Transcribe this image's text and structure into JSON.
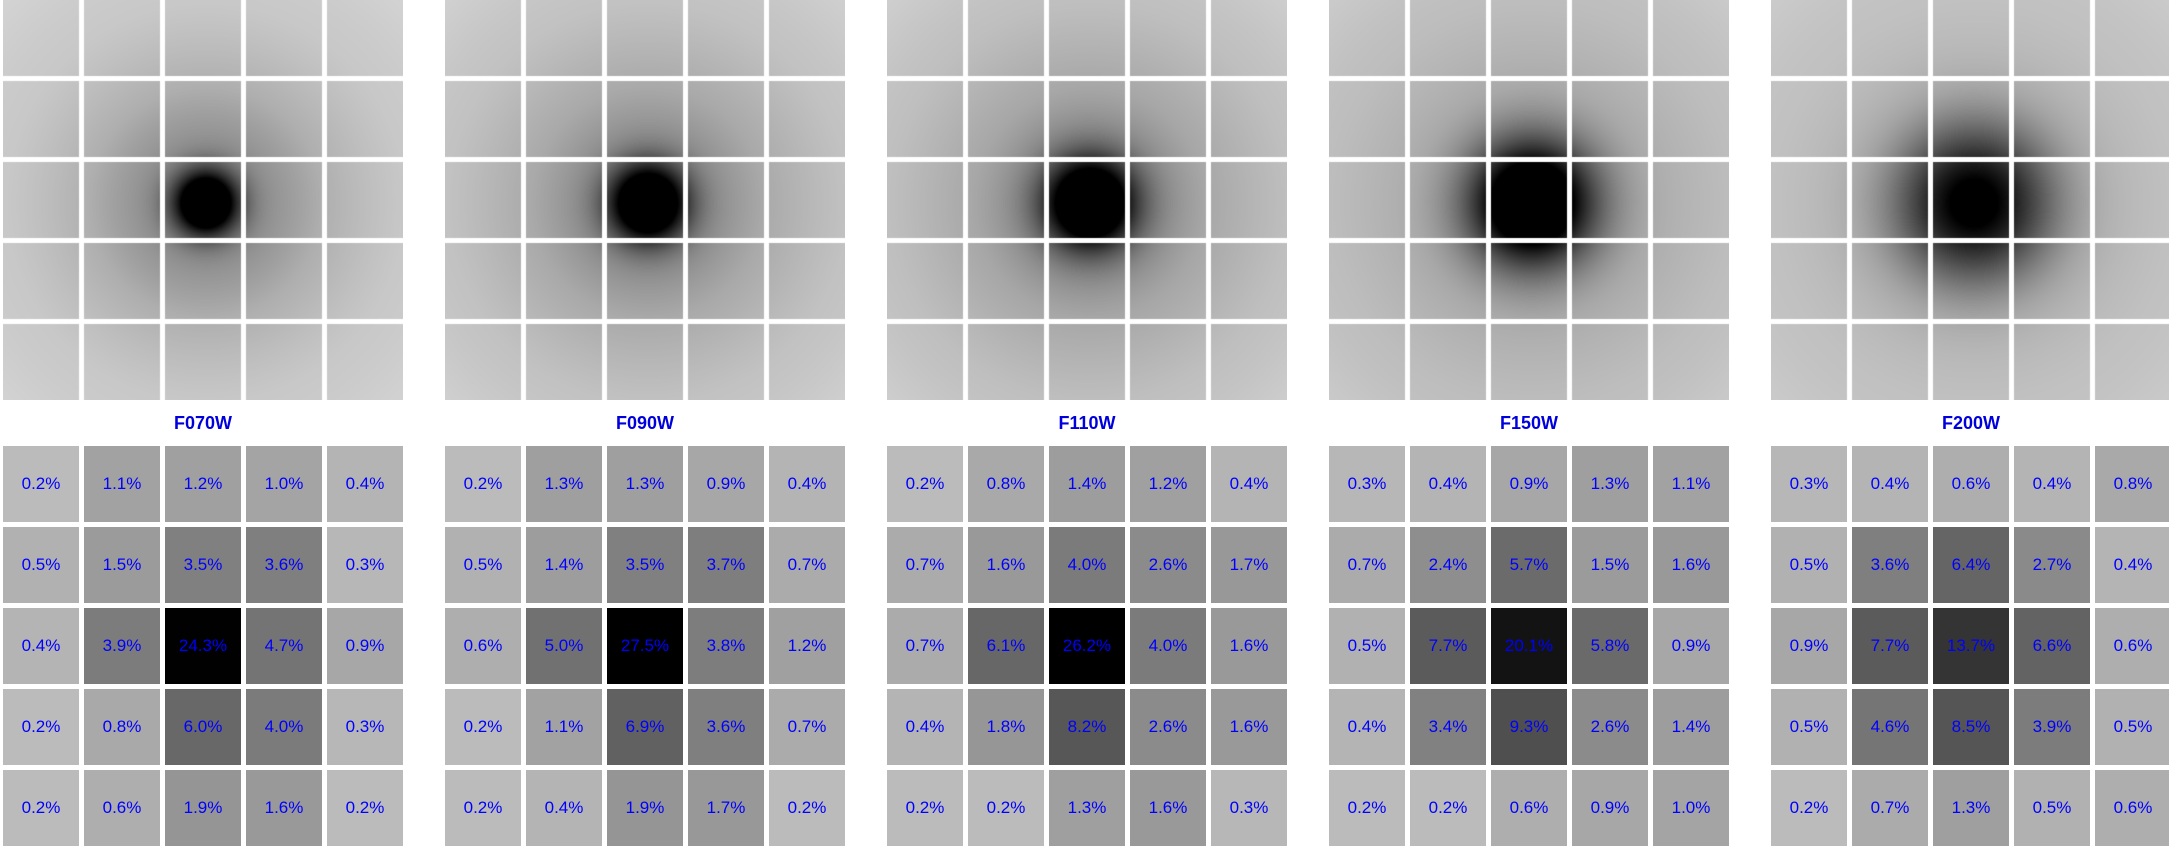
{
  "colors": {
    "label": "#0000ff",
    "title": "#0000dd",
    "gridline": "#ffffff",
    "background": "#ffffff"
  },
  "chart_data": [
    {
      "type": "heatmap",
      "title": "F070W",
      "psf_profile": {
        "core_width": 0.42,
        "halo_width": 1.4,
        "core_weight": 1.0,
        "halo_weight": 0.25
      },
      "values": [
        [
          "0.2%",
          "1.1%",
          "1.2%",
          "1.0%",
          "0.4%"
        ],
        [
          "0.5%",
          "1.5%",
          "3.5%",
          "3.6%",
          "0.3%"
        ],
        [
          "0.4%",
          "3.9%",
          "24.3%",
          "4.7%",
          "0.9%"
        ],
        [
          "0.2%",
          "0.8%",
          "6.0%",
          "4.0%",
          "0.3%"
        ],
        [
          "0.2%",
          "0.6%",
          "1.9%",
          "1.6%",
          "0.2%"
        ]
      ]
    },
    {
      "type": "heatmap",
      "title": "F090W",
      "psf_profile": {
        "core_width": 0.5,
        "halo_width": 1.6,
        "core_weight": 1.0,
        "halo_weight": 0.25
      },
      "values": [
        [
          "0.2%",
          "1.3%",
          "1.3%",
          "0.9%",
          "0.4%"
        ],
        [
          "0.5%",
          "1.4%",
          "3.5%",
          "3.7%",
          "0.7%"
        ],
        [
          "0.6%",
          "5.0%",
          "27.5%",
          "3.8%",
          "1.2%"
        ],
        [
          "0.2%",
          "1.1%",
          "6.9%",
          "3.6%",
          "0.7%"
        ],
        [
          "0.2%",
          "0.4%",
          "1.9%",
          "1.7%",
          "0.2%"
        ]
      ]
    },
    {
      "type": "heatmap",
      "title": "F110W",
      "psf_profile": {
        "core_width": 0.58,
        "halo_width": 1.7,
        "core_weight": 1.0,
        "halo_weight": 0.25
      },
      "values": [
        [
          "0.2%",
          "0.8%",
          "1.4%",
          "1.2%",
          "0.4%"
        ],
        [
          "0.7%",
          "1.6%",
          "4.0%",
          "2.6%",
          "1.7%"
        ],
        [
          "0.7%",
          "6.1%",
          "26.2%",
          "4.0%",
          "1.6%"
        ],
        [
          "0.4%",
          "1.8%",
          "8.2%",
          "2.6%",
          "1.6%"
        ],
        [
          "0.2%",
          "0.2%",
          "1.3%",
          "1.6%",
          "0.3%"
        ]
      ]
    },
    {
      "type": "heatmap",
      "title": "F150W",
      "psf_profile": {
        "core_width": 0.75,
        "halo_width": 2.0,
        "core_weight": 1.0,
        "halo_weight": 0.2
      },
      "values": [
        [
          "0.3%",
          "0.4%",
          "0.9%",
          "1.3%",
          "1.1%"
        ],
        [
          "0.7%",
          "2.4%",
          "5.7%",
          "1.5%",
          "1.6%"
        ],
        [
          "0.5%",
          "7.7%",
          "20.1%",
          "5.8%",
          "0.9%"
        ],
        [
          "0.4%",
          "3.4%",
          "9.3%",
          "2.6%",
          "1.4%"
        ],
        [
          "0.2%",
          "0.2%",
          "0.6%",
          "0.9%",
          "1.0%"
        ]
      ]
    },
    {
      "type": "heatmap",
      "title": "F200W",
      "psf_profile": {
        "core_width": 0.95,
        "halo_width": 2.2,
        "core_weight": 0.72,
        "halo_weight": 0.15
      },
      "values": [
        [
          "0.3%",
          "0.4%",
          "0.6%",
          "0.4%",
          "0.8%"
        ],
        [
          "0.5%",
          "3.6%",
          "6.4%",
          "2.7%",
          "0.4%"
        ],
        [
          "0.9%",
          "7.7%",
          "13.7%",
          "6.6%",
          "0.6%"
        ],
        [
          "0.5%",
          "4.6%",
          "8.5%",
          "3.9%",
          "0.5%"
        ],
        [
          "0.2%",
          "0.7%",
          "1.3%",
          "0.5%",
          "0.6%"
        ]
      ]
    }
  ]
}
